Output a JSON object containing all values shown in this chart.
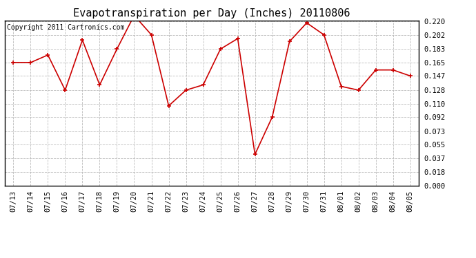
{
  "title": "Evapotranspiration per Day (Inches) 20110806",
  "copyright_text": "Copyright 2011 Cartronics.com",
  "dates": [
    "07/13",
    "07/14",
    "07/15",
    "07/16",
    "07/17",
    "07/18",
    "07/19",
    "07/20",
    "07/21",
    "07/22",
    "07/23",
    "07/24",
    "07/25",
    "07/26",
    "07/27",
    "07/28",
    "07/29",
    "07/30",
    "07/31",
    "08/01",
    "08/02",
    "08/03",
    "08/04",
    "08/05"
  ],
  "values": [
    0.165,
    0.165,
    0.175,
    0.128,
    0.195,
    0.135,
    0.183,
    0.228,
    0.202,
    0.107,
    0.128,
    0.135,
    0.183,
    0.197,
    0.042,
    0.092,
    0.193,
    0.218,
    0.202,
    0.133,
    0.128,
    0.155,
    0.155,
    0.147
  ],
  "ylim": [
    0.0,
    0.22
  ],
  "yticks": [
    0.0,
    0.018,
    0.037,
    0.055,
    0.073,
    0.092,
    0.11,
    0.128,
    0.147,
    0.165,
    0.183,
    0.202,
    0.22
  ],
  "line_color": "#cc0000",
  "marker_color": "#cc0000",
  "bg_color": "#ffffff",
  "grid_color": "#bbbbbb",
  "title_fontsize": 11,
  "tick_fontsize": 7.5,
  "copyright_fontsize": 7
}
